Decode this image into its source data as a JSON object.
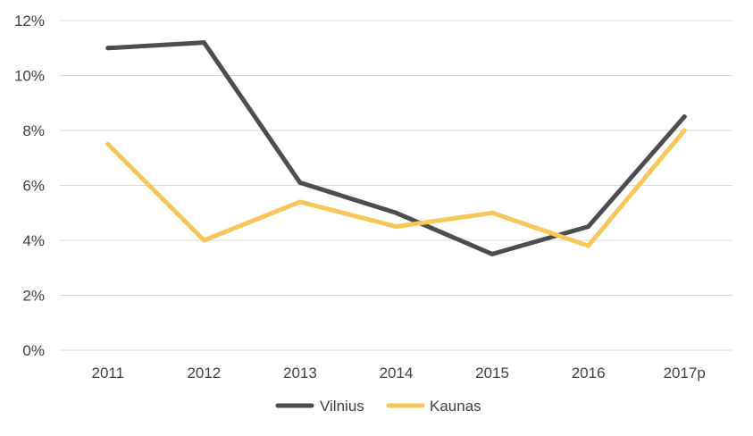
{
  "chart_data": {
    "type": "line",
    "categories": [
      "2011",
      "2012",
      "2013",
      "2014",
      "2015",
      "2016",
      "2017p"
    ],
    "series": [
      {
        "name": "Vilnius",
        "color": "#4d4d4f",
        "values": [
          11.0,
          11.2,
          6.1,
          5.0,
          3.5,
          4.5,
          8.5
        ]
      },
      {
        "name": "Kaunas",
        "color": "#f7c75a",
        "values": [
          7.5,
          4.0,
          5.4,
          4.5,
          5.0,
          3.8,
          8.0
        ]
      }
    ],
    "y_ticks": [
      "0%",
      "2%",
      "4%",
      "6%",
      "8%",
      "10%",
      "12%"
    ],
    "ylim": [
      0,
      12
    ],
    "grid": true,
    "legend_position": "bottom"
  }
}
